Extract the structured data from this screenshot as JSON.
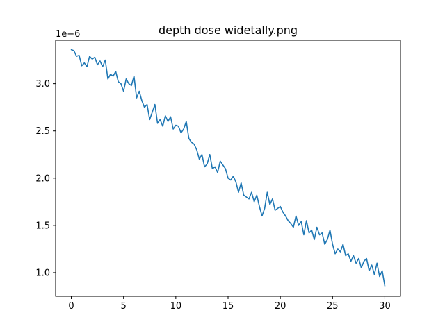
{
  "chart_data": {
    "type": "line",
    "title": "depth dose widetally.png",
    "xlabel": "",
    "ylabel": "",
    "y_offset_label": "1e−6",
    "xlim": [
      -1.5,
      31.5
    ],
    "ylim": [
      7.5e-07,
      3.46e-06
    ],
    "xticks": [
      0,
      5,
      10,
      15,
      20,
      25,
      30
    ],
    "xtick_labels": [
      "0",
      "5",
      "10",
      "15",
      "20",
      "25",
      "30"
    ],
    "yticks": [
      1e-06,
      1.5e-06,
      2e-06,
      2.5e-06,
      3e-06
    ],
    "ytick_labels": [
      "1.0",
      "1.5",
      "2.0",
      "2.5",
      "3.0"
    ],
    "grid": false,
    "series": [
      {
        "color": "#1f77b4",
        "x": [
          0.0,
          0.25,
          0.5,
          0.75,
          1.0,
          1.25,
          1.5,
          1.75,
          2.0,
          2.25,
          2.5,
          2.75,
          3.0,
          3.25,
          3.5,
          3.75,
          4.0,
          4.25,
          4.5,
          4.75,
          5.0,
          5.25,
          5.5,
          5.75,
          6.0,
          6.25,
          6.5,
          6.75,
          7.0,
          7.25,
          7.5,
          7.75,
          8.0,
          8.25,
          8.5,
          8.75,
          9.0,
          9.25,
          9.5,
          9.75,
          10.0,
          10.25,
          10.5,
          10.75,
          11.0,
          11.25,
          11.5,
          11.75,
          12.0,
          12.25,
          12.5,
          12.75,
          13.0,
          13.25,
          13.5,
          13.75,
          14.0,
          14.25,
          14.5,
          14.75,
          15.0,
          15.25,
          15.5,
          15.75,
          16.0,
          16.25,
          16.5,
          16.75,
          17.0,
          17.25,
          17.5,
          17.75,
          18.0,
          18.25,
          18.5,
          18.75,
          19.0,
          19.25,
          19.5,
          19.75,
          20.0,
          20.25,
          20.5,
          20.75,
          21.0,
          21.25,
          21.5,
          21.75,
          22.0,
          22.25,
          22.5,
          22.75,
          23.0,
          23.25,
          23.5,
          23.75,
          24.0,
          24.25,
          24.5,
          24.75,
          25.0,
          25.25,
          25.5,
          25.75,
          26.0,
          26.25,
          26.5,
          26.75,
          27.0,
          27.25,
          27.5,
          27.75,
          28.0,
          28.25,
          28.5,
          28.75,
          29.0,
          29.25,
          29.5,
          29.75,
          30.0
        ],
        "y": [
          3.36e-06,
          3.35e-06,
          3.29e-06,
          3.3e-06,
          3.19e-06,
          3.22e-06,
          3.18e-06,
          3.29e-06,
          3.26e-06,
          3.28e-06,
          3.2e-06,
          3.24e-06,
          3.18e-06,
          3.25e-06,
          3.05e-06,
          3.1e-06,
          3.08e-06,
          3.13e-06,
          3.02e-06,
          3e-06,
          2.92e-06,
          3.05e-06,
          3e-06,
          2.98e-06,
          3.08e-06,
          2.85e-06,
          2.92e-06,
          2.82e-06,
          2.75e-06,
          2.78e-06,
          2.62e-06,
          2.7e-06,
          2.78e-06,
          2.58e-06,
          2.62e-06,
          2.55e-06,
          2.66e-06,
          2.6e-06,
          2.65e-06,
          2.52e-06,
          2.56e-06,
          2.55e-06,
          2.48e-06,
          2.52e-06,
          2.6e-06,
          2.42e-06,
          2.38e-06,
          2.36e-06,
          2.3e-06,
          2.2e-06,
          2.25e-06,
          2.12e-06,
          2.15e-06,
          2.25e-06,
          2.1e-06,
          2.12e-06,
          2.06e-06,
          2.18e-06,
          2.14e-06,
          2.1e-06,
          2e-06,
          1.98e-06,
          2.02e-06,
          1.96e-06,
          1.85e-06,
          1.95e-06,
          1.82e-06,
          1.8e-06,
          1.78e-06,
          1.85e-06,
          1.75e-06,
          1.82e-06,
          1.7e-06,
          1.6e-06,
          1.68e-06,
          1.85e-06,
          1.72e-06,
          1.78e-06,
          1.66e-06,
          1.68e-06,
          1.7e-06,
          1.64e-06,
          1.6e-06,
          1.55e-06,
          1.52e-06,
          1.48e-06,
          1.6e-06,
          1.5e-06,
          1.54e-06,
          1.4e-06,
          1.55e-06,
          1.42e-06,
          1.45e-06,
          1.35e-06,
          1.48e-06,
          1.4e-06,
          1.42e-06,
          1.3e-06,
          1.35e-06,
          1.45e-06,
          1.3e-06,
          1.2e-06,
          1.25e-06,
          1.22e-06,
          1.3e-06,
          1.18e-06,
          1.2e-06,
          1.12e-06,
          1.18e-06,
          1.1e-06,
          1.15e-06,
          1.05e-06,
          1.12e-06,
          1.15e-06,
          1.02e-06,
          1.08e-06,
          9.8e-07,
          1.1e-06,
          9.6e-07,
          1.02e-06,
          8.6e-07
        ]
      }
    ]
  }
}
